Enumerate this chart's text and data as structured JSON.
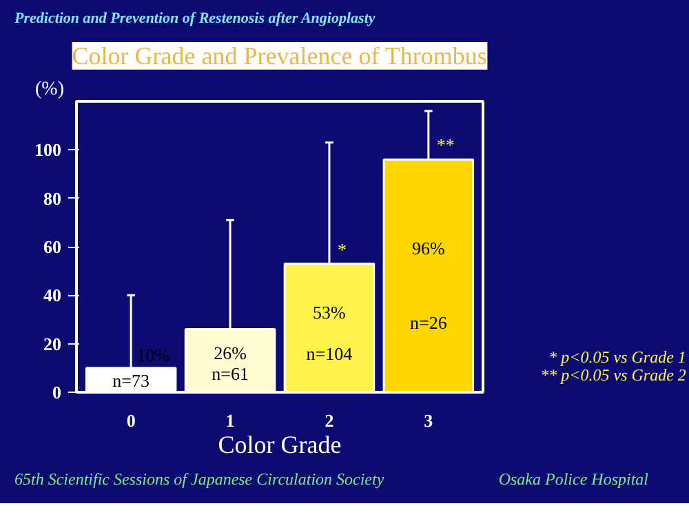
{
  "chart_data": {
    "type": "bar",
    "subtitle": "Prediction and Prevention of Restenosis after  Angioplasty",
    "title": "Color Grade and Prevalence of Thrombus",
    "xlabel": "Color Grade",
    "ylabel": "(%)",
    "categories": [
      "0",
      "1",
      "2",
      "3"
    ],
    "values": [
      10,
      26,
      53,
      96
    ],
    "colors": [
      "#ffffff",
      "#fffbd2",
      "#fff24a",
      "#ffd700"
    ],
    "errors": [
      [
        10,
        40
      ],
      [
        26,
        71
      ],
      [
        53,
        103
      ],
      [
        96,
        116
      ]
    ],
    "value_labels": [
      "10%",
      "26%",
      "53%",
      "96%"
    ],
    "ylim": [
      0,
      120
    ],
    "yticks": [
      0,
      20,
      40,
      60,
      80,
      100
    ],
    "grid": false,
    "annotations": [
      "n=73",
      "n=61",
      "n=104",
      "n=26",
      {
        "text": "*",
        "x": "2",
        "y": 53
      },
      {
        "text": "**",
        "x": "3",
        "y": 96
      },
      "* p<0.05 vs Grade 1",
      "** p<0.05 vs Grade 2",
      "65th Scientific Sessions of Japanese Circulation Society",
      "Osaka Police Hospital"
    ]
  }
}
